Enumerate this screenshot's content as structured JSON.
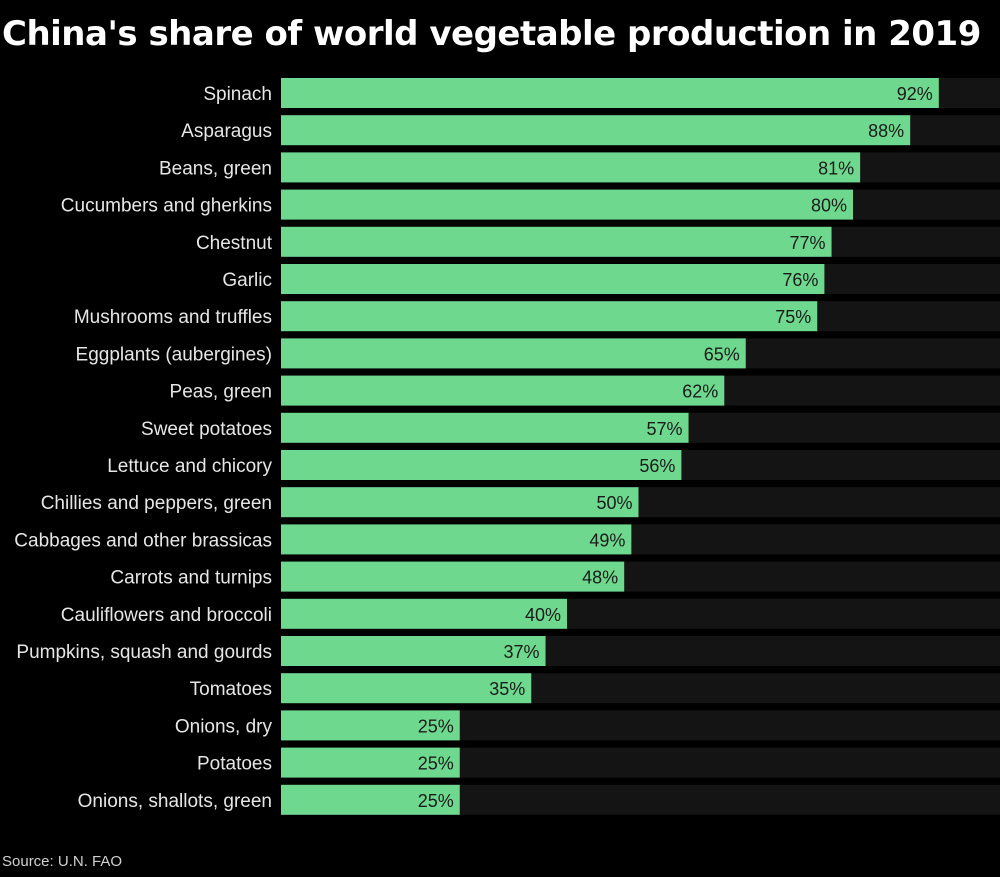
{
  "chart_data": {
    "type": "bar",
    "orientation": "horizontal",
    "title": "China's share of world vegetable production in 2019",
    "source": "Source: U.N. FAO",
    "value_suffix": "%",
    "xlim": [
      0,
      100
    ],
    "grid": false,
    "colors": {
      "bar": "#6ed98e",
      "track": "#141414",
      "background": "#000000"
    },
    "categories": [
      "Spinach",
      "Asparagus",
      "Beans, green",
      "Cucumbers and gherkins",
      "Chestnut",
      "Garlic",
      "Mushrooms and truffles",
      "Eggplants (aubergines)",
      "Peas, green",
      "Sweet potatoes",
      "Lettuce and chicory",
      "Chillies and peppers, green",
      "Cabbages and other brassicas",
      "Carrots and turnips",
      "Cauliflowers and broccoli",
      "Pumpkins, squash and gourds",
      "Tomatoes",
      "Onions, dry",
      "Potatoes",
      "Onions, shallots, green"
    ],
    "values": [
      92,
      88,
      81,
      80,
      77,
      76,
      75,
      65,
      62,
      57,
      56,
      50,
      49,
      48,
      40,
      37,
      35,
      25,
      25,
      25
    ]
  }
}
